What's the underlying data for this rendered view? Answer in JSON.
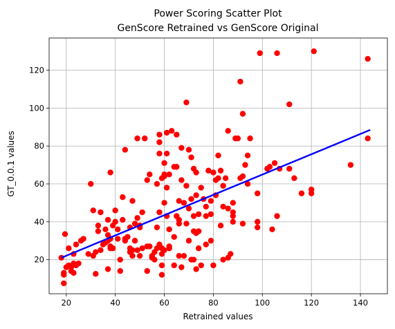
{
  "chart_data": {
    "type": "scatter",
    "title_line1": "Power Scoring Scatter Plot",
    "title_line2": "GenScore Retrained vs GenScore Original",
    "xlabel": "Retrained values",
    "ylabel": "GT_0.0.1 values",
    "xlim": [
      13,
      151
    ],
    "ylim": [
      2,
      137
    ],
    "xticks": [
      20,
      40,
      60,
      80,
      100,
      120,
      140
    ],
    "yticks": [
      20,
      40,
      60,
      80,
      100,
      120
    ],
    "grid": true,
    "colors": {
      "points": "#ff0000",
      "fit_line": "#0000ff",
      "grid": "#b0b0b0"
    },
    "fit_line": {
      "x": [
        18,
        144
      ],
      "y": [
        21,
        88.5
      ]
    },
    "points": [
      [
        18,
        21
      ],
      [
        19,
        13
      ],
      [
        19,
        12
      ],
      [
        19,
        7.5
      ],
      [
        19.5,
        33.5
      ],
      [
        20,
        16
      ],
      [
        21,
        26
      ],
      [
        21,
        17
      ],
      [
        22,
        16
      ],
      [
        22,
        14
      ],
      [
        23,
        13
      ],
      [
        23,
        23
      ],
      [
        23,
        18
      ],
      [
        24,
        28
      ],
      [
        24,
        17
      ],
      [
        25,
        18
      ],
      [
        26,
        30
      ],
      [
        27,
        31
      ],
      [
        29,
        23
      ],
      [
        30,
        60
      ],
      [
        31,
        46
      ],
      [
        31,
        22
      ],
      [
        32,
        12.5
      ],
      [
        32,
        24
      ],
      [
        33,
        35
      ],
      [
        33,
        38
      ],
      [
        34,
        45
      ],
      [
        34,
        25
      ],
      [
        35,
        28
      ],
      [
        36,
        29
      ],
      [
        36,
        36
      ],
      [
        37,
        30
      ],
      [
        37,
        33
      ],
      [
        37,
        41
      ],
      [
        37,
        15
      ],
      [
        38,
        66
      ],
      [
        38,
        26
      ],
      [
        38,
        31
      ],
      [
        38,
        27
      ],
      [
        39,
        26
      ],
      [
        39,
        38
      ],
      [
        40,
        46
      ],
      [
        40,
        40
      ],
      [
        41,
        36
      ],
      [
        41,
        31
      ],
      [
        42,
        20
      ],
      [
        42,
        14
      ],
      [
        43,
        41
      ],
      [
        43,
        53
      ],
      [
        44,
        31
      ],
      [
        44,
        78
      ],
      [
        44,
        30
      ],
      [
        45,
        32
      ],
      [
        46,
        24
      ],
      [
        46,
        26
      ],
      [
        46,
        37
      ],
      [
        47,
        22
      ],
      [
        47,
        51
      ],
      [
        47,
        25
      ],
      [
        48,
        39
      ],
      [
        48,
        30
      ],
      [
        49,
        84
      ],
      [
        49,
        42
      ],
      [
        49,
        25
      ],
      [
        50,
        37
      ],
      [
        50,
        22
      ],
      [
        50,
        38
      ],
      [
        51,
        26
      ],
      [
        51,
        45
      ],
      [
        52,
        84
      ],
      [
        53,
        14
      ],
      [
        53,
        62
      ],
      [
        53,
        27
      ],
      [
        54,
        65
      ],
      [
        54,
        27
      ],
      [
        55,
        22
      ],
      [
        55,
        21
      ],
      [
        56,
        24
      ],
      [
        56,
        20
      ],
      [
        57,
        26
      ],
      [
        57,
        37
      ],
      [
        57,
        60
      ],
      [
        58,
        86
      ],
      [
        58,
        76
      ],
      [
        58,
        45
      ],
      [
        58,
        28
      ],
      [
        58,
        82
      ],
      [
        59,
        63
      ],
      [
        59,
        26
      ],
      [
        59,
        12
      ],
      [
        59,
        17
      ],
      [
        59,
        23
      ],
      [
        60,
        71
      ],
      [
        60,
        64
      ],
      [
        60,
        65
      ],
      [
        60,
        50
      ],
      [
        60,
        25
      ],
      [
        61,
        87
      ],
      [
        61,
        76
      ],
      [
        61,
        58
      ],
      [
        61,
        43
      ],
      [
        62,
        36
      ],
      [
        62,
        27
      ],
      [
        62,
        26
      ],
      [
        62,
        65
      ],
      [
        63,
        88
      ],
      [
        64,
        69
      ],
      [
        64,
        32
      ],
      [
        64,
        17
      ],
      [
        65,
        69
      ],
      [
        65,
        86
      ],
      [
        65,
        43
      ],
      [
        66,
        41
      ],
      [
        66,
        51
      ],
      [
        66,
        22
      ],
      [
        66,
        39
      ],
      [
        67,
        62
      ],
      [
        67,
        16
      ],
      [
        67,
        79
      ],
      [
        68,
        50
      ],
      [
        68,
        22
      ],
      [
        69,
        59
      ],
      [
        69,
        103
      ],
      [
        69,
        39
      ],
      [
        70,
        78
      ],
      [
        70,
        30
      ],
      [
        70,
        47
      ],
      [
        71,
        74
      ],
      [
        71,
        52
      ],
      [
        71,
        20
      ],
      [
        72,
        68
      ],
      [
        72,
        43
      ],
      [
        72,
        35
      ],
      [
        72,
        20
      ],
      [
        73,
        15
      ],
      [
        73,
        66
      ],
      [
        73,
        54
      ],
      [
        73,
        34
      ],
      [
        74,
        26
      ],
      [
        74,
        35
      ],
      [
        74,
        44
      ],
      [
        75,
        58
      ],
      [
        75,
        17
      ],
      [
        76,
        52
      ],
      [
        77,
        48
      ],
      [
        77,
        43
      ],
      [
        77,
        28
      ],
      [
        78,
        67
      ],
      [
        79,
        51
      ],
      [
        79,
        44
      ],
      [
        79,
        30
      ],
      [
        80,
        66
      ],
      [
        80,
        17
      ],
      [
        81,
        54
      ],
      [
        81,
        62
      ],
      [
        82,
        75
      ],
      [
        82,
        63
      ],
      [
        83,
        67
      ],
      [
        83,
        38
      ],
      [
        84,
        48
      ],
      [
        84,
        59
      ],
      [
        84,
        20
      ],
      [
        85,
        63
      ],
      [
        86,
        47
      ],
      [
        86,
        88
      ],
      [
        86,
        21
      ],
      [
        87,
        23
      ],
      [
        88,
        50
      ],
      [
        88,
        43
      ],
      [
        88,
        40
      ],
      [
        88,
        45
      ],
      [
        89,
        84
      ],
      [
        90,
        84
      ],
      [
        91,
        63
      ],
      [
        91,
        114
      ],
      [
        92,
        97
      ],
      [
        92,
        64
      ],
      [
        92,
        39
      ],
      [
        93,
        70
      ],
      [
        94,
        75
      ],
      [
        94,
        60
      ],
      [
        95,
        84
      ],
      [
        98,
        55
      ],
      [
        98,
        37
      ],
      [
        98,
        40
      ],
      [
        99,
        129
      ],
      [
        102,
        68
      ],
      [
        103,
        69
      ],
      [
        104,
        36
      ],
      [
        105,
        71
      ],
      [
        106,
        129
      ],
      [
        106,
        43
      ],
      [
        107,
        68
      ],
      [
        111,
        102
      ],
      [
        111,
        68
      ],
      [
        113,
        63
      ],
      [
        116,
        55
      ],
      [
        120,
        55
      ],
      [
        120,
        57
      ],
      [
        121,
        130
      ],
      [
        136,
        70
      ],
      [
        143,
        126
      ],
      [
        143,
        84
      ]
    ]
  }
}
